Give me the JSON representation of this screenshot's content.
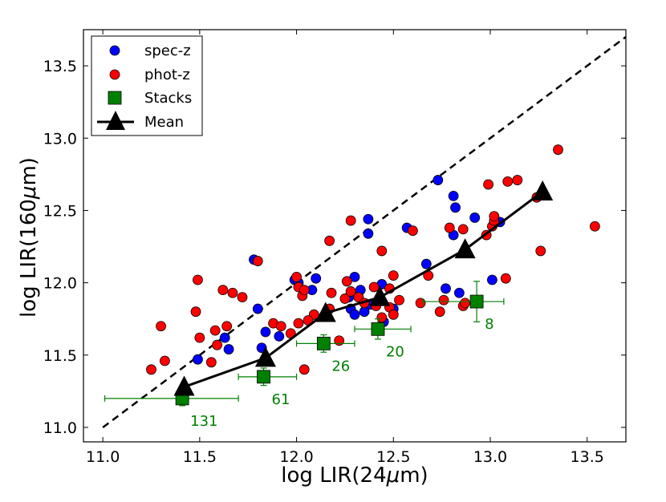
{
  "chart_data": {
    "type": "scatter",
    "title": "",
    "xlabel_prefix": "log LIR(24",
    "xlabel_suffix": "m)",
    "ylabel_prefix": "log LIR(160",
    "ylabel_suffix": "m)",
    "mu": "μ",
    "xlim": [
      10.9,
      13.7
    ],
    "ylim": [
      10.9,
      13.75
    ],
    "xticks": [
      11.0,
      11.5,
      12.0,
      12.5,
      13.0,
      13.5
    ],
    "yticks": [
      11.0,
      11.5,
      12.0,
      12.5,
      13.0,
      13.5
    ],
    "xtick_labels": [
      "11.0",
      "11.5",
      "12.0",
      "12.5",
      "13.0",
      "13.5"
    ],
    "ytick_labels": [
      "11.0",
      "11.5",
      "12.0",
      "12.5",
      "13.0",
      "13.5"
    ],
    "legend": {
      "position": "upper-left",
      "entries": [
        "spec-z",
        "phot-z",
        "Stacks",
        "Mean"
      ]
    },
    "colors": {
      "spec_z": "#0000ff",
      "phot_z": "#ff0000",
      "stacks": "#008000",
      "mean": "#000000"
    },
    "one_to_one_line": {
      "x": [
        11.0,
        13.7
      ],
      "y": [
        11.0,
        13.7
      ]
    },
    "spec_z": {
      "name": "spec-z",
      "x": [
        11.49,
        11.63,
        11.65,
        11.78,
        11.8,
        11.82,
        11.84,
        11.91,
        11.99,
        12.01,
        12.08,
        12.1,
        12.28,
        12.3,
        12.32,
        12.33,
        12.35,
        12.37,
        12.37,
        12.44,
        12.45,
        12.57,
        12.67,
        12.73,
        12.77,
        12.81,
        12.81,
        12.82,
        12.84,
        12.92,
        13.01,
        13.05,
        12.27,
        12.3,
        12.38,
        12.5
      ],
      "y": [
        11.47,
        11.62,
        11.54,
        12.16,
        11.82,
        11.55,
        11.66,
        11.63,
        12.02,
        12.0,
        11.95,
        12.03,
        11.82,
        12.04,
        11.9,
        11.95,
        11.8,
        12.44,
        12.34,
        11.99,
        11.73,
        12.38,
        12.13,
        12.71,
        11.96,
        12.33,
        12.6,
        12.52,
        11.93,
        12.45,
        12.02,
        12.42,
        11.9,
        11.78,
        11.85,
        11.82
      ]
    },
    "phot_z": {
      "name": "phot-z",
      "x": [
        11.25,
        11.3,
        11.32,
        11.48,
        11.49,
        11.5,
        11.56,
        11.58,
        11.59,
        11.62,
        11.64,
        11.67,
        11.72,
        11.8,
        11.88,
        11.92,
        11.97,
        12.0,
        12.01,
        12.01,
        12.03,
        12.04,
        12.04,
        12.09,
        12.17,
        12.17,
        12.18,
        12.25,
        12.26,
        12.28,
        12.28,
        12.32,
        12.35,
        12.4,
        12.44,
        12.44,
        12.48,
        12.48,
        12.5,
        12.5,
        12.53,
        12.6,
        12.64,
        12.68,
        12.74,
        12.76,
        12.79,
        12.86,
        12.86,
        12.87,
        12.98,
        12.99,
        13.01,
        13.02,
        13.02,
        13.08,
        13.09,
        13.14,
        13.24,
        13.26,
        13.35,
        13.54,
        12.06,
        12.22,
        12.41
      ],
      "y": [
        11.4,
        11.7,
        11.46,
        11.8,
        12.02,
        11.62,
        11.45,
        11.67,
        11.57,
        11.95,
        11.7,
        11.93,
        11.9,
        12.15,
        11.72,
        11.7,
        11.65,
        12.04,
        11.97,
        11.72,
        11.91,
        11.4,
        11.95,
        11.78,
        12.29,
        11.82,
        11.93,
        11.89,
        12.01,
        12.43,
        11.94,
        11.9,
        11.86,
        11.97,
        11.76,
        12.22,
        11.96,
        11.83,
        11.78,
        12.05,
        11.88,
        12.36,
        11.86,
        12.05,
        11.8,
        11.88,
        12.38,
        12.37,
        11.84,
        11.86,
        12.33,
        12.68,
        12.39,
        12.43,
        12.46,
        12.03,
        12.7,
        12.71,
        12.59,
        12.22,
        12.92,
        12.39,
        11.74,
        11.6,
        11.84
      ]
    },
    "stacks": {
      "name": "Stacks",
      "x": [
        11.41,
        11.83,
        12.14,
        12.42,
        12.93
      ],
      "y": [
        11.2,
        11.35,
        11.58,
        11.68,
        11.87
      ],
      "xerr_low": [
        0.4,
        0.13,
        0.14,
        0.12,
        0.28
      ],
      "xerr_high": [
        0.29,
        0.17,
        0.16,
        0.17,
        0.14
      ],
      "yerr": [
        0.05,
        0.06,
        0.06,
        0.07,
        0.14
      ],
      "counts": [
        "131",
        "61",
        "26",
        "20",
        "8"
      ]
    },
    "mean": {
      "name": "Mean",
      "x": [
        11.42,
        11.84,
        12.15,
        12.43,
        12.87,
        13.27
      ],
      "y": [
        11.28,
        11.48,
        11.79,
        11.9,
        12.23,
        12.63
      ]
    }
  }
}
